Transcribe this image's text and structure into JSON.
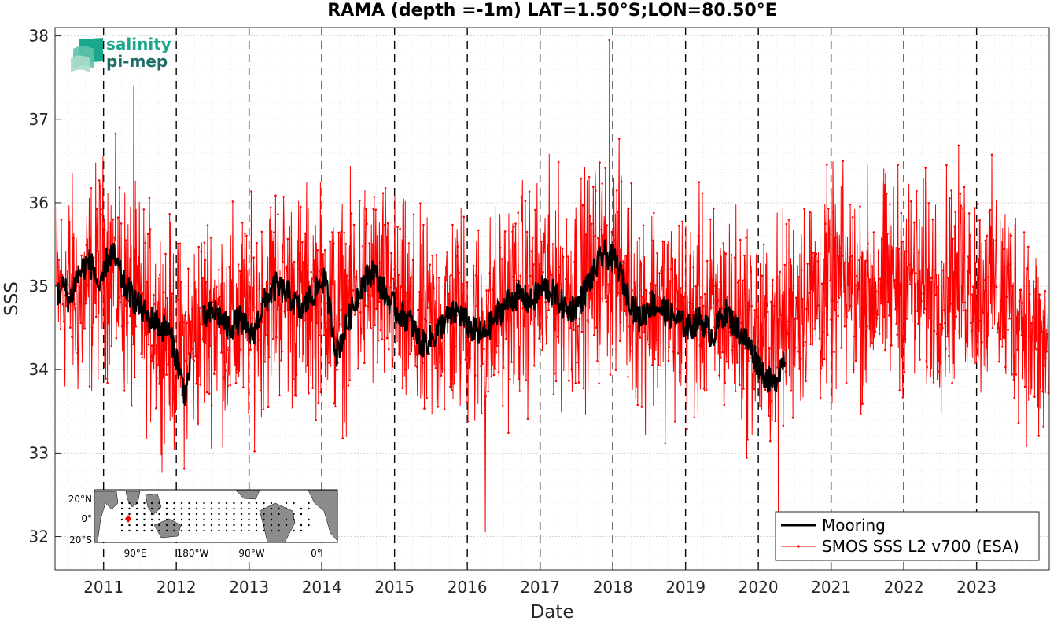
{
  "chart_data": {
    "type": "line",
    "title": "RAMA (depth =-1m) LAT=1.50°S;LON=80.50°E",
    "xlabel": "Date",
    "ylabel": "SSS",
    "xlim": [
      "2010-05-01",
      "2023-12-31"
    ],
    "ylim": [
      31.6,
      38.1
    ],
    "x_ticks": [
      "2011",
      "2012",
      "2013",
      "2014",
      "2015",
      "2016",
      "2017",
      "2018",
      "2019",
      "2020",
      "2021",
      "2022",
      "2023"
    ],
    "y_ticks": [
      "32",
      "33",
      "34",
      "35",
      "36",
      "37",
      "38"
    ],
    "grid": true,
    "year_boundary_lines": "dashed black",
    "legend_position": "bottom-right",
    "series": [
      {
        "name": "Mooring",
        "color": "#000000",
        "style": "thick line",
        "segments": [
          {
            "x": [
              "2010-05",
              "2010-06",
              "2010-07",
              "2010-08",
              "2010-09",
              "2010-10",
              "2010-11",
              "2010-12",
              "2011-01",
              "2011-02",
              "2011-03",
              "2011-04",
              "2011-05",
              "2011-06",
              "2011-07",
              "2011-08",
              "2011-09",
              "2011-10",
              "2011-11",
              "2011-12",
              "2012-01",
              "2012-02",
              "2012-03"
            ],
            "y": [
              34.9,
              35.0,
              34.8,
              35.1,
              35.2,
              35.3,
              35.2,
              34.9,
              35.3,
              35.4,
              35.2,
              35.0,
              34.9,
              34.8,
              34.7,
              34.6,
              34.6,
              34.5,
              34.5,
              34.3,
              34.0,
              33.7,
              34.1
            ]
          },
          {
            "x": [
              "2012-05",
              "2012-07",
              "2012-09",
              "2012-11",
              "2013-01",
              "2013-03",
              "2013-05",
              "2013-07",
              "2013-09",
              "2013-11",
              "2014-01",
              "2014-03",
              "2014-05",
              "2014-07",
              "2014-09",
              "2014-11",
              "2015-01",
              "2015-03",
              "2015-05",
              "2015-07",
              "2015-09",
              "2015-11",
              "2016-01",
              "2016-03",
              "2016-05",
              "2016-07",
              "2016-09",
              "2016-11",
              "2017-01",
              "2017-03",
              "2017-05",
              "2017-07",
              "2017-09",
              "2017-11",
              "2018-01",
              "2018-03",
              "2018-05",
              "2018-07",
              "2018-09",
              "2018-11",
              "2019-01",
              "2019-03",
              "2019-05",
              "2019-07",
              "2019-09",
              "2019-11",
              "2020-01",
              "2020-03",
              "2020-05"
            ],
            "y": [
              34.6,
              34.7,
              34.5,
              34.6,
              34.4,
              34.8,
              35.0,
              34.9,
              34.7,
              34.9,
              35.1,
              34.2,
              34.6,
              35.0,
              35.2,
              34.9,
              34.7,
              34.6,
              34.3,
              34.4,
              34.6,
              34.7,
              34.5,
              34.4,
              34.6,
              34.8,
              34.9,
              34.8,
              35.0,
              34.9,
              34.7,
              34.8,
              35.1,
              35.4,
              35.3,
              34.9,
              34.6,
              34.8,
              34.7,
              34.6,
              34.5,
              34.6,
              34.4,
              34.7,
              34.5,
              34.3,
              34.0,
              33.8,
              34.2
            ]
          }
        ]
      },
      {
        "name": "SMOS SSS L2 v700 (ESA)",
        "color": "#ff0000",
        "style": "thin line with dot markers",
        "x": [
          "2010-05",
          "2010-07",
          "2010-09",
          "2010-11",
          "2011-01",
          "2011-03",
          "2011-05",
          "2011-07",
          "2011-09",
          "2011-11",
          "2012-01",
          "2012-03",
          "2012-05",
          "2012-07",
          "2012-09",
          "2012-11",
          "2013-01",
          "2013-03",
          "2013-05",
          "2013-07",
          "2013-09",
          "2013-11",
          "2014-01",
          "2014-03",
          "2014-05",
          "2014-07",
          "2014-09",
          "2014-11",
          "2015-01",
          "2015-03",
          "2015-05",
          "2015-07",
          "2015-09",
          "2015-11",
          "2016-01",
          "2016-03",
          "2016-05",
          "2016-07",
          "2016-09",
          "2016-11",
          "2017-01",
          "2017-03",
          "2017-05",
          "2017-07",
          "2017-09",
          "2017-11",
          "2018-01",
          "2018-03",
          "2018-05",
          "2018-07",
          "2018-09",
          "2018-11",
          "2019-01",
          "2019-03",
          "2019-05",
          "2019-07",
          "2019-09",
          "2019-11",
          "2020-01",
          "2020-03",
          "2020-05",
          "2020-07",
          "2020-09",
          "2020-11",
          "2021-01",
          "2021-03",
          "2021-05",
          "2021-07",
          "2021-09",
          "2021-11",
          "2022-01",
          "2022-03",
          "2022-05",
          "2022-07",
          "2022-09",
          "2022-11",
          "2023-01",
          "2023-03",
          "2023-05",
          "2023-07",
          "2023-09",
          "2023-11"
        ],
        "y": [
          34.9,
          35.0,
          34.8,
          35.1,
          35.3,
          35.1,
          34.8,
          34.7,
          34.6,
          34.5,
          34.2,
          34.3,
          34.6,
          34.7,
          34.5,
          34.6,
          34.6,
          34.8,
          35.0,
          34.9,
          34.8,
          34.9,
          34.9,
          34.6,
          34.8,
          35.0,
          35.0,
          34.9,
          34.7,
          34.6,
          34.4,
          34.5,
          34.6,
          34.7,
          34.6,
          34.5,
          34.6,
          34.8,
          34.9,
          34.9,
          35.0,
          35.0,
          34.9,
          35.0,
          35.1,
          35.3,
          35.3,
          35.0,
          34.8,
          34.8,
          34.7,
          34.7,
          34.6,
          34.7,
          34.6,
          34.7,
          34.6,
          34.5,
          34.3,
          34.4,
          34.6,
          34.8,
          34.9,
          34.9,
          35.0,
          35.0,
          34.9,
          35.0,
          35.0,
          35.1,
          35.1,
          35.0,
          34.9,
          35.0,
          35.1,
          35.1,
          35.0,
          35.0,
          34.9,
          34.8,
          34.6,
          34.2
        ],
        "spread_approx": 1.0,
        "notable_peaks": [
          {
            "x": "2017-12-15",
            "y": 37.95
          },
          {
            "x": "2011-06-01",
            "y": 37.4
          },
          {
            "x": "2016-04-01",
            "y": 32.05
          },
          {
            "x": "2020-04-10",
            "y": 31.95
          }
        ]
      }
    ],
    "inset_map": {
      "lat_ticks": [
        "20°N",
        "0°",
        "20°S"
      ],
      "lon_ticks": [
        "90°E",
        "180°W",
        "90°W",
        "0°"
      ],
      "marker_color": "#ff0000"
    }
  },
  "logo": {
    "line1": "salinity",
    "line2": "pi-mep",
    "color1": "#1aa88c",
    "color2": "#1c6d66"
  }
}
